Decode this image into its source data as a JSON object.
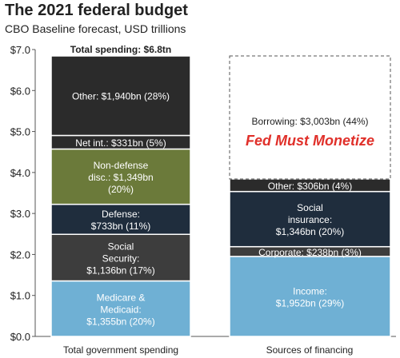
{
  "chart_data": {
    "type": "bar",
    "stacked": true,
    "title": "The 2021 federal budget",
    "subtitle": "CBO Baseline forecast, USD trillions",
    "ylim": [
      0,
      7
    ],
    "yticks": [
      "$0.0",
      "$1.0",
      "$2.0",
      "$3.0",
      "$4.0",
      "$5.0",
      "$6.0",
      "$7.0"
    ],
    "grid": false,
    "categories": [
      "Total government spending",
      "Sources of financing"
    ],
    "bars": [
      {
        "category": "Total government spending",
        "top_label": "Total spending: $6.8tn",
        "segments": [
          {
            "name": "Medicare & Medicaid",
            "value": 1.355,
            "label": [
              "Medicare &",
              "Medicaid:",
              "$1,355bn (20%)"
            ],
            "color": "#6fb0d4",
            "text_color": "#ffffff"
          },
          {
            "name": "Social Security",
            "value": 1.136,
            "label": [
              "Social",
              "Security:",
              "$1,136bn (17%)"
            ],
            "color": "#3d3d3d",
            "text_color": "#ffffff"
          },
          {
            "name": "Defense",
            "value": 0.733,
            "label": [
              "Defense:",
              "$733bn (11%)"
            ],
            "color": "#1f2d3d",
            "text_color": "#ffffff"
          },
          {
            "name": "Non-defense disc.",
            "value": 1.349,
            "label": [
              "Non-defense",
              "disc.: $1,349bn",
              "(20%)"
            ],
            "color": "#6b7a3a",
            "text_color": "#ffffff"
          },
          {
            "name": "Net int.",
            "value": 0.331,
            "label": [
              "Net int.: $331bn (5%)"
            ],
            "color": "#2b2b2b",
            "text_color": "#ffffff"
          },
          {
            "name": "Other",
            "value": 1.94,
            "label": [
              "Other: $1,940bn (28%)"
            ],
            "color": "#2b2b2b",
            "text_color": "#ffffff"
          }
        ]
      },
      {
        "category": "Sources of financing",
        "segments": [
          {
            "name": "Income",
            "value": 1.952,
            "label": [
              "Income:",
              "$1,952bn (29%)"
            ],
            "color": "#6fb0d4",
            "text_color": "#ffffff"
          },
          {
            "name": "Corporate",
            "value": 0.238,
            "label": [
              "Corporate: $238bn (3%)"
            ],
            "color": "#3d3d3d",
            "text_color": "#ffffff"
          },
          {
            "name": "Social insurance",
            "value": 1.346,
            "label": [
              "Social",
              "insurance:",
              "$1,346bn (20%)"
            ],
            "color": "#1f2d3d",
            "text_color": "#ffffff"
          },
          {
            "name": "Other",
            "value": 0.306,
            "label": [
              "Other: $306bn (4%)"
            ],
            "color": "#2b2b2b",
            "text_color": "#ffffff"
          },
          {
            "name": "Borrowing",
            "value": 3.003,
            "label": [
              "Borrowing: $3,003bn (44%)"
            ],
            "color": "#ffffff",
            "text_color": "#222222",
            "dashed": true
          }
        ]
      }
    ],
    "annotations": [
      {
        "text": "Fed Must Monetize",
        "color": "#e0302a"
      }
    ]
  }
}
